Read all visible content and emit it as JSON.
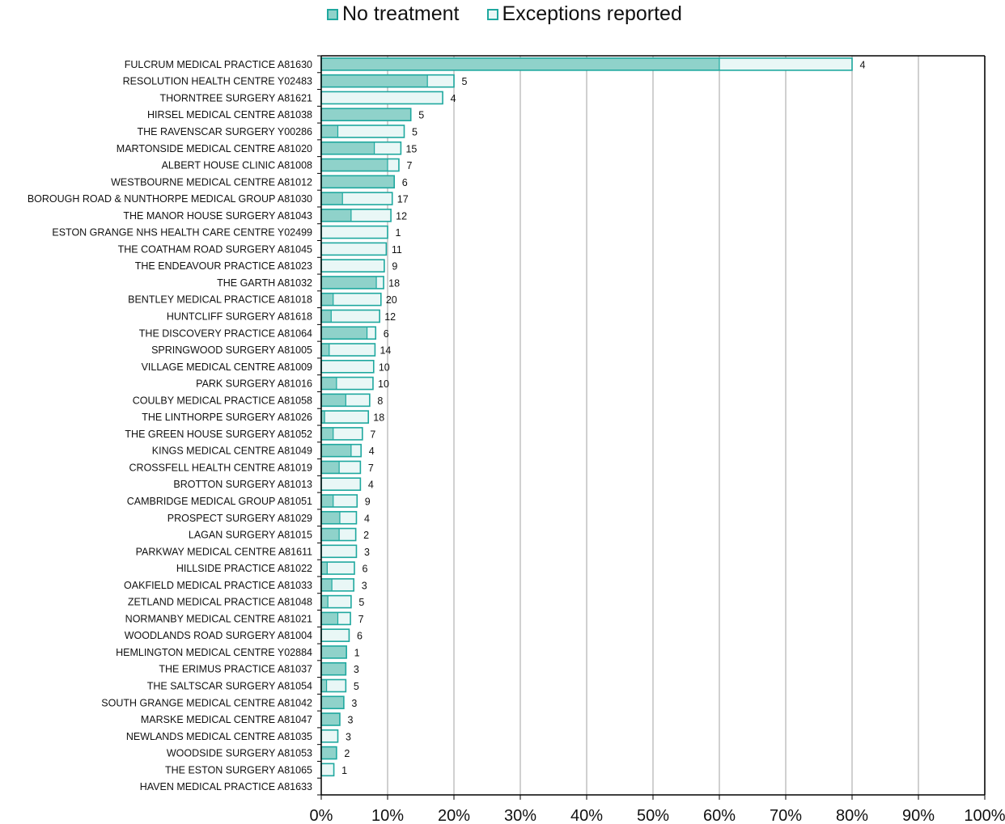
{
  "colors": {
    "no_treatment": "#8fd2ca",
    "exceptions": "#e9f7f6",
    "border": "#1fa89f",
    "grid": "#c0c0c0"
  },
  "legend": {
    "no_treatment": "No treatment",
    "exceptions": "Exceptions reported"
  },
  "chart_data": {
    "type": "bar",
    "orientation": "horizontal",
    "stacked": true,
    "xlim": [
      0,
      100
    ],
    "ticks": [
      "0%",
      "10%",
      "20%",
      "30%",
      "40%",
      "50%",
      "60%",
      "70%",
      "80%",
      "90%",
      "100%"
    ],
    "grid": true,
    "legend_position": "top",
    "categories": [
      "FULCRUM MEDICAL PRACTICE A81630",
      "RESOLUTION HEALTH CENTRE Y02483",
      "THORNTREE SURGERY A81621",
      "HIRSEL MEDICAL CENTRE A81038",
      "THE RAVENSCAR SURGERY Y00286",
      "MARTONSIDE MEDICAL CENTRE A81020",
      "ALBERT HOUSE CLINIC A81008",
      "WESTBOURNE MEDICAL CENTRE A81012",
      "BOROUGH ROAD & NUNTHORPE MEDICAL GROUP A81030",
      "THE MANOR HOUSE SURGERY A81043",
      "ESTON GRANGE NHS HEALTH CARE CENTRE Y02499",
      "THE COATHAM ROAD SURGERY A81045",
      "THE ENDEAVOUR PRACTICE A81023",
      "THE GARTH A81032",
      "BENTLEY MEDICAL PRACTICE A81018",
      "HUNTCLIFF SURGERY A81618",
      "THE DISCOVERY PRACTICE A81064",
      "SPRINGWOOD SURGERY A81005",
      "VILLAGE MEDICAL CENTRE A81009",
      "PARK SURGERY A81016",
      "COULBY MEDICAL PRACTICE A81058",
      "THE LINTHORPE SURGERY A81026",
      "THE GREEN HOUSE SURGERY A81052",
      "KINGS MEDICAL CENTRE A81049",
      "CROSSFELL HEALTH CENTRE A81019",
      "BROTTON SURGERY A81013",
      "CAMBRIDGE MEDICAL GROUP A81051",
      "PROSPECT SURGERY A81029",
      "LAGAN SURGERY A81015",
      "PARKWAY MEDICAL CENTRE A81611",
      "HILLSIDE PRACTICE A81022",
      "OAKFIELD MEDICAL PRACTICE A81033",
      "ZETLAND MEDICAL PRACTICE A81048",
      "NORMANBY MEDICAL CENTRE A81021",
      "WOODLANDS ROAD SURGERY A81004",
      "HEMLINGTON MEDICAL CENTRE Y02884",
      "THE ERIMUS PRACTICE A81037",
      "THE SALTSCAR SURGERY A81054",
      "SOUTH GRANGE MEDICAL CENTRE A81042",
      "MARSKE MEDICAL CENTRE A81047",
      "NEWLANDS MEDICAL CENTRE A81035",
      "WOODSIDE SURGERY A81053",
      "THE ESTON SURGERY A81065",
      "HAVEN MEDICAL PRACTICE A81633"
    ],
    "series": [
      {
        "name": "No treatment",
        "values": [
          60,
          16,
          0,
          13.5,
          2.5,
          8,
          10,
          11,
          3.2,
          4.5,
          0,
          0,
          0,
          8.3,
          1.8,
          1.5,
          6.9,
          1.2,
          0,
          2.3,
          3.7,
          0.5,
          1.8,
          4.5,
          2.7,
          0,
          1.8,
          2.8,
          2.7,
          0,
          0.9,
          1.6,
          1,
          2.5,
          0,
          3.8,
          3.7,
          0.8,
          3.4,
          2.8,
          0,
          2.3,
          0,
          0
        ]
      },
      {
        "name": "Exceptions reported",
        "values": [
          20,
          4,
          18.3,
          0,
          10,
          4,
          1.7,
          0,
          7.5,
          6,
          10,
          9.8,
          9.5,
          1.1,
          7.2,
          7.3,
          1.3,
          6.9,
          7.9,
          5.5,
          3.6,
          6.6,
          4.4,
          1.5,
          3.2,
          5.9,
          3.6,
          2.5,
          2.5,
          5.3,
          4.1,
          3.3,
          3.5,
          1.9,
          4.2,
          0,
          0,
          2.9,
          0,
          0,
          2.5,
          0,
          1.9,
          0
        ]
      }
    ],
    "data_labels": [
      "4",
      "5",
      "4",
      "5",
      "5",
      "15",
      "7",
      "6",
      "17",
      "12",
      "1",
      "11",
      "9",
      "18",
      "20",
      "12",
      "6",
      "14",
      "10",
      "10",
      "8",
      "18",
      "7",
      "4",
      "7",
      "4",
      "9",
      "4",
      "2",
      "3",
      "6",
      "3",
      "5",
      "7",
      "6",
      "1",
      "3",
      "5",
      "3",
      "3",
      "3",
      "2",
      "1",
      ""
    ]
  }
}
